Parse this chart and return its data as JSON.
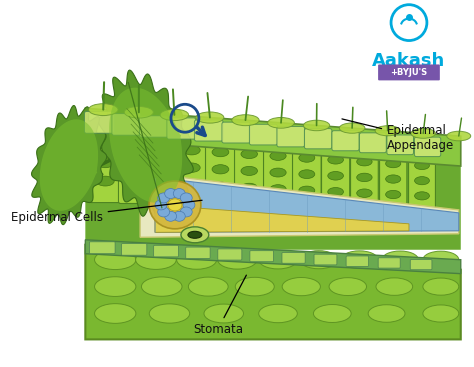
{
  "background_color": "#ffffff",
  "labels": {
    "epidermal_appendage": "Epidermal\nAppendage",
    "epidermal_cells": "Epidermal Cells",
    "stomata": "Stomata"
  },
  "colors": {
    "teal_border": "#7abfa0",
    "palisade_green": "#8dc83a",
    "palisade_dark": "#5a9020",
    "spongy_green": "#7ab830",
    "spongy_cell": "#9ad040",
    "epi_cell": "#c8e870",
    "epi_border": "#6aaa50",
    "blue_vein": "#8ab8d8",
    "yellow_vein": "#e0d050",
    "bg_green": "#6ab030",
    "bottom_green": "#8ac840",
    "bottom_dark": "#5a9020",
    "leaf_bright": "#7ac030",
    "leaf_mid": "#5a9828",
    "leaf_dark": "#3a7018",
    "hair_color": "#4a8820",
    "logo_blue": "#00aadd",
    "logo_purple": "#7755aa"
  },
  "figsize": [
    4.74,
    3.67
  ],
  "dpi": 100
}
